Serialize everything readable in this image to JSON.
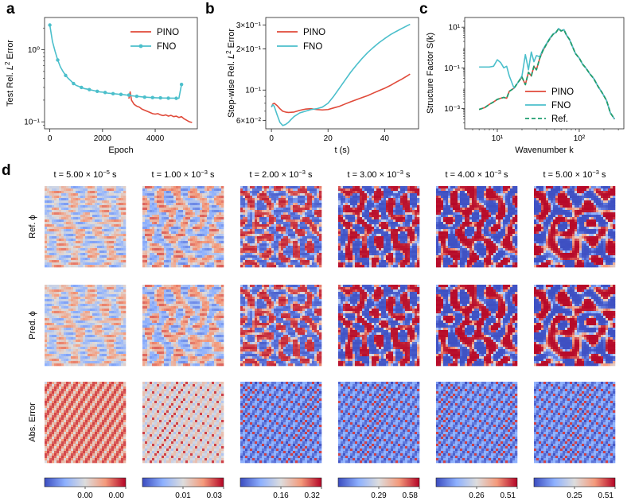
{
  "panels": {
    "a": "a",
    "b": "b",
    "c": "c",
    "d": "d"
  },
  "colors": {
    "pino": "#e04a3a",
    "fno": "#4bbfcb",
    "ref": "#1f9e6e"
  },
  "chart_data": [
    {
      "id": "a",
      "type": "line",
      "title": "",
      "xlabel": "Epoch",
      "ylabel": "Test Rel. L² Error",
      "ylabel_parts": [
        "Test Rel. ",
        "L",
        "2",
        " Error"
      ],
      "xlim": [
        -200,
        5600
      ],
      "ylim_log": [
        0.08,
        2.8
      ],
      "yscale": "log",
      "xticks": [
        0,
        2000,
        4000
      ],
      "xtick_labels": [
        "0",
        "2000",
        "4000"
      ],
      "yticks": [
        1,
        0.1
      ],
      "ytick_labels": [
        "10⁰",
        "10⁻¹"
      ],
      "legend": [
        "PINO",
        "FNO"
      ],
      "series": [
        {
          "name": "PINO",
          "x": [
            3000,
            3050,
            3100,
            3200,
            3300,
            3400,
            3500,
            3600,
            3700,
            3800,
            3900,
            4000,
            4100,
            4200,
            4300,
            4400,
            4500,
            4600,
            4700,
            4800,
            4900,
            5000,
            5100,
            5200,
            5300,
            5400
          ],
          "y": [
            0.21,
            0.26,
            0.2,
            0.175,
            0.165,
            0.16,
            0.15,
            0.145,
            0.14,
            0.135,
            0.13,
            0.128,
            0.13,
            0.125,
            0.122,
            0.125,
            0.12,
            0.123,
            0.118,
            0.12,
            0.115,
            0.118,
            0.11,
            0.105,
            0.1,
            0.098
          ]
        },
        {
          "name": "FNO",
          "x": [
            0,
            100,
            200,
            300,
            400,
            500,
            600,
            700,
            800,
            900,
            1000,
            1100,
            1200,
            1300,
            1400,
            1500,
            1600,
            1700,
            1800,
            1900,
            2000,
            2100,
            2200,
            2300,
            2400,
            2500,
            2600,
            2700,
            2800,
            2900,
            3000,
            3100,
            3200,
            3300,
            3400,
            3500,
            3600,
            3700,
            3800,
            3900,
            4000,
            4100,
            4200,
            4300,
            4400,
            4500,
            4600,
            4700,
            4800,
            4900,
            5000
          ],
          "y": [
            2.2,
            1.3,
            0.95,
            0.72,
            0.58,
            0.5,
            0.44,
            0.4,
            0.37,
            0.34,
            0.32,
            0.31,
            0.3,
            0.29,
            0.285,
            0.28,
            0.275,
            0.27,
            0.265,
            0.26,
            0.258,
            0.255,
            0.25,
            0.248,
            0.246,
            0.244,
            0.242,
            0.24,
            0.238,
            0.236,
            0.235,
            0.23,
            0.228,
            0.226,
            0.224,
            0.222,
            0.22,
            0.219,
            0.218,
            0.217,
            0.216,
            0.215,
            0.215,
            0.214,
            0.214,
            0.213,
            0.213,
            0.213,
            0.212,
            0.212,
            0.33
          ]
        }
      ]
    },
    {
      "id": "b",
      "type": "line",
      "xlabel": "t (s)",
      "ylabel": "Step-wise Rel. L² Error",
      "ylabel_parts": [
        "Step-wise Rel. ",
        "L",
        "2",
        " Error"
      ],
      "xlim": [
        -2,
        52
      ],
      "ylim_log": [
        0.052,
        0.34
      ],
      "yscale": "log",
      "xticks": [
        0,
        20,
        40
      ],
      "xtick_labels": [
        "0",
        "20",
        "40"
      ],
      "yticks": [
        0.3,
        0.2,
        0.1,
        0.06
      ],
      "ytick_labels": [
        "3×10⁻¹",
        "2×10⁻¹",
        "10⁻¹",
        "6×10⁻²"
      ],
      "legend": [
        "PINO",
        "FNO"
      ],
      "series": [
        {
          "name": "PINO",
          "x": [
            0,
            0.5,
            1,
            2,
            3,
            4,
            5,
            6,
            8,
            10,
            12,
            14,
            16,
            18,
            20,
            22,
            24,
            26,
            28,
            30,
            32,
            34,
            36,
            38,
            40,
            42,
            44,
            46,
            48,
            49
          ],
          "y": [
            0.075,
            0.079,
            0.08,
            0.077,
            0.073,
            0.07,
            0.069,
            0.0685,
            0.069,
            0.071,
            0.0725,
            0.073,
            0.072,
            0.0715,
            0.072,
            0.074,
            0.076,
            0.079,
            0.082,
            0.085,
            0.088,
            0.091,
            0.095,
            0.099,
            0.103,
            0.108,
            0.114,
            0.12,
            0.127,
            0.131
          ]
        },
        {
          "name": "FNO",
          "x": [
            0,
            0.5,
            1,
            2,
            3,
            4,
            5,
            6,
            7,
            8,
            10,
            12,
            14,
            16,
            18,
            20,
            22,
            24,
            26,
            28,
            30,
            32,
            34,
            36,
            38,
            40,
            42,
            44,
            46,
            48,
            49
          ],
          "y": [
            0.075,
            0.078,
            0.076,
            0.066,
            0.058,
            0.055,
            0.056,
            0.058,
            0.061,
            0.064,
            0.068,
            0.07,
            0.072,
            0.073,
            0.075,
            0.08,
            0.09,
            0.103,
            0.118,
            0.135,
            0.152,
            0.17,
            0.188,
            0.205,
            0.222,
            0.238,
            0.254,
            0.268,
            0.282,
            0.296,
            0.303
          ]
        }
      ]
    },
    {
      "id": "c",
      "type": "line",
      "xlabel": "Wavenumber k",
      "ylabel": "Structure Factor S(k)",
      "xscale": "log",
      "yscale": "log",
      "xlim_log": [
        4,
        350
      ],
      "ylim_log": [
        0.0001,
        30
      ],
      "xticks": [
        10,
        100
      ],
      "xtick_labels": [
        "10¹",
        "10²"
      ],
      "yticks": [
        10,
        0.1,
        0.001
      ],
      "ytick_labels": [
        "10¹",
        "10⁻¹",
        "10⁻³"
      ],
      "legend": [
        "PINO",
        "FNO",
        "Ref."
      ],
      "series": [
        {
          "name": "PINO",
          "x": [
            6,
            7,
            8,
            9,
            10,
            11,
            12,
            13,
            14,
            16,
            18,
            20,
            22,
            24,
            26,
            28,
            30,
            33,
            36,
            40,
            44,
            48,
            52,
            56,
            60,
            65,
            70,
            76,
            82,
            90,
            100,
            110,
            120,
            135,
            150,
            170,
            190,
            215,
            240,
            270
          ],
          "y": [
            0.0009,
            0.0011,
            0.0016,
            0.0021,
            0.0028,
            0.0032,
            0.0035,
            0.0032,
            0.007,
            0.01,
            0.02,
            0.035,
            0.015,
            0.06,
            0.04,
            0.12,
            0.08,
            0.3,
            0.7,
            1.5,
            2.8,
            4.5,
            5.5,
            8.5,
            6.5,
            7.5,
            4,
            2.5,
            1.2,
            0.5,
            0.3,
            0.15,
            0.1,
            0.05,
            0.03,
            0.012,
            0.006,
            0.0025,
            0.0006,
            0.0003
          ]
        },
        {
          "name": "FNO",
          "x": [
            6,
            7,
            8,
            9,
            10,
            11,
            12,
            13,
            14,
            16,
            18,
            20,
            22,
            24,
            26,
            28,
            30,
            33,
            36,
            40,
            44,
            48,
            52,
            56,
            60,
            65,
            70,
            76,
            82,
            90,
            100,
            110,
            120,
            135,
            150,
            170,
            190,
            215,
            240,
            270
          ],
          "y": [
            0.11,
            0.11,
            0.11,
            0.12,
            0.25,
            0.18,
            0.1,
            0.12,
            0.04,
            0.01,
            0.02,
            0.04,
            0.45,
            0.08,
            0.6,
            0.2,
            0.4,
            0.35,
            0.8,
            1.6,
            3,
            4.6,
            5.6,
            8.6,
            6.6,
            7.6,
            4.1,
            2.5,
            1.2,
            0.5,
            0.3,
            0.15,
            0.1,
            0.05,
            0.03,
            0.012,
            0.006,
            0.0025,
            0.0006,
            0.0003
          ]
        },
        {
          "name": "Ref.",
          "x": [
            6,
            7,
            8,
            9,
            10,
            11,
            12,
            13,
            14,
            16,
            18,
            20,
            22,
            24,
            26,
            28,
            30,
            33,
            36,
            40,
            44,
            48,
            52,
            56,
            60,
            65,
            70,
            76,
            82,
            90,
            100,
            110,
            120,
            135,
            150,
            170,
            190,
            215,
            240,
            270
          ],
          "y": [
            0.0009,
            0.0011,
            0.0016,
            0.0021,
            0.0028,
            0.0032,
            0.0035,
            0.0032,
            0.007,
            0.01,
            0.02,
            0.035,
            0.015,
            0.06,
            0.04,
            0.12,
            0.08,
            0.3,
            0.7,
            1.5,
            2.8,
            4.5,
            5.5,
            8.5,
            6.5,
            7.5,
            4,
            2.5,
            1.2,
            0.5,
            0.3,
            0.15,
            0.1,
            0.05,
            0.03,
            0.012,
            0.006,
            0.0025,
            0.0006,
            0.0003
          ]
        }
      ]
    },
    {
      "id": "d",
      "type": "heatmap",
      "column_titles": [
        {
          "pre": "t = 5.00 × 10",
          "exp": "−5",
          "post": " s"
        },
        {
          "pre": "t = 1.00 × 10",
          "exp": "−3",
          "post": " s"
        },
        {
          "pre": "t = 2.00 × 10",
          "exp": "−3",
          "post": " s"
        },
        {
          "pre": "t = 3.00 × 10",
          "exp": "−3",
          "post": " s"
        },
        {
          "pre": "t = 4.00 × 10",
          "exp": "−3",
          "post": " s"
        },
        {
          "pre": "t = 5.00 × 10",
          "exp": "−3",
          "post": " s"
        }
      ],
      "row_labels": [
        "Ref. ϕ",
        "Pred. ϕ",
        "Abs. Error"
      ],
      "colorbar_ticks": [
        [
          "0.00",
          "0.00"
        ],
        [
          "0.01",
          "0.03"
        ],
        [
          "0.16",
          "0.32"
        ],
        [
          "0.29",
          "0.58"
        ],
        [
          "0.26",
          "0.51"
        ],
        [
          "0.25",
          "0.51"
        ]
      ],
      "pattern_strength": [
        0.35,
        0.5,
        0.85,
        0.95,
        0.97,
        0.98
      ],
      "pattern_scale": [
        0.9,
        1.0,
        1.15,
        1.05,
        0.95,
        0.9
      ]
    }
  ]
}
